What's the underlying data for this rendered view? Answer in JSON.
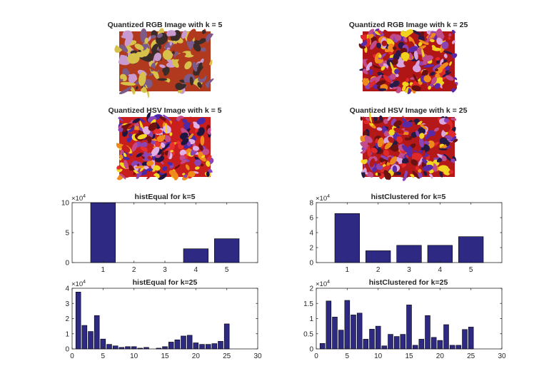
{
  "images": [
    {
      "title": "Quantized RGB Image with k = 5",
      "palette": [
        "#b13a1e",
        "#d7c14a",
        "#7c5a8a",
        "#3a2a28",
        "#c99ad0"
      ],
      "style": "rgb5"
    },
    {
      "title": "Quantized RGB Image with k = 25",
      "palette": [
        "#b01616",
        "#e02828",
        "#f1d21c",
        "#8a44b6",
        "#5a28a8",
        "#f08a1a",
        "#6a1010",
        "#d9a3e0",
        "#2a1a4a",
        "#c04a8a"
      ],
      "style": "fine"
    },
    {
      "title": "Quantized HSV Image with k = 5",
      "palette": [
        "#c81e1e",
        "#e83030",
        "#f4d824",
        "#8a44b6",
        "#4a2aa8",
        "#f08a1a",
        "#701010",
        "#e0b0e6",
        "#1e1640",
        "#c44a8a"
      ],
      "style": "fine"
    },
    {
      "title": "Quantized HSV Image with k = 25",
      "palette": [
        "#b41818",
        "#e02a2a",
        "#f2d422",
        "#8a44b6",
        "#5a2aa6",
        "#ee8a1c",
        "#6a1212",
        "#d8a6e0",
        "#261a44",
        "#c24c8c"
      ],
      "style": "fine"
    }
  ],
  "chart_data": [
    {
      "type": "bar",
      "title": "histEqual for k=5",
      "x": [
        1,
        2,
        3,
        4,
        5
      ],
      "values": [
        99800,
        0,
        0,
        23000,
        39800
      ],
      "xlim": [
        0,
        6
      ],
      "ylim": [
        0,
        100000
      ],
      "xticks": [
        "1",
        "2",
        "3",
        "4",
        "5"
      ],
      "yticks": [
        "0",
        "5",
        "10"
      ],
      "multiplier": "×10",
      "exponent": "4",
      "bar_color": "#2e2a84"
    },
    {
      "type": "bar",
      "title": "histClustered for k=5",
      "x": [
        1,
        2,
        3,
        4,
        5
      ],
      "values": [
        65500,
        15800,
        23000,
        23000,
        34600
      ],
      "xlim": [
        0,
        6
      ],
      "ylim": [
        0,
        80000
      ],
      "xticks": [
        "1",
        "2",
        "3",
        "4",
        "5"
      ],
      "yticks": [
        "0",
        "2",
        "4",
        "6",
        "8"
      ],
      "multiplier": "×10",
      "exponent": "4",
      "bar_color": "#2e2a84"
    },
    {
      "type": "bar",
      "title": "histEqual for k=25",
      "x": [
        1,
        2,
        3,
        4,
        5,
        6,
        7,
        8,
        9,
        10,
        11,
        12,
        13,
        14,
        15,
        16,
        17,
        18,
        19,
        20,
        21,
        22,
        23,
        24,
        25
      ],
      "values": [
        37500,
        15500,
        11500,
        22000,
        6500,
        3000,
        2000,
        1000,
        1500,
        1500,
        500,
        1000,
        0,
        500,
        1500,
        4500,
        6000,
        8500,
        9000,
        4000,
        3000,
        3000,
        3500,
        5000,
        16500
      ],
      "xlim": [
        0,
        30
      ],
      "ylim": [
        0,
        40000
      ],
      "xticks": [
        "0",
        "5",
        "10",
        "15",
        "20",
        "25",
        "30"
      ],
      "yticks": [
        "0",
        "1",
        "2",
        "3",
        "4"
      ],
      "multiplier": "×10",
      "exponent": "4",
      "bar_color": "#2e2a84"
    },
    {
      "type": "bar",
      "title": "histClustered for k=25",
      "x": [
        1,
        2,
        3,
        4,
        5,
        6,
        7,
        8,
        9,
        10,
        11,
        12,
        13,
        14,
        15,
        16,
        17,
        18,
        19,
        20,
        21,
        22,
        23,
        24,
        25
      ],
      "values": [
        1800,
        15800,
        10500,
        6200,
        16000,
        11200,
        11800,
        3200,
        6500,
        7500,
        1000,
        4800,
        4100,
        4800,
        14500,
        1200,
        3200,
        11000,
        3800,
        2800,
        8000,
        1200,
        1200,
        6400,
        7200
      ],
      "xlim": [
        0,
        30
      ],
      "ylim": [
        0,
        20000
      ],
      "xticks": [
        "0",
        "5",
        "10",
        "15",
        "20",
        "25",
        "30"
      ],
      "yticks": [
        "0",
        "0.5",
        "1",
        "1.5",
        "2"
      ],
      "multiplier": "×10",
      "exponent": "4",
      "bar_color": "#2e2a84"
    }
  ]
}
